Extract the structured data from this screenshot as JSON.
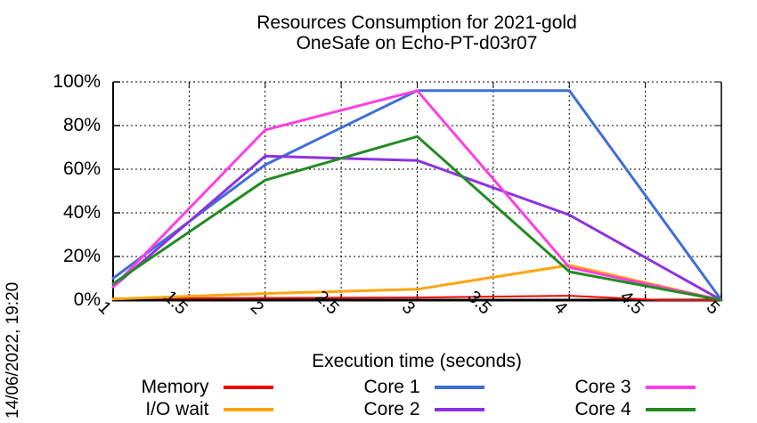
{
  "title": {
    "line1": "Resources Consumption for 2021-gold",
    "line2": "OneSafe on Echo-PT-d03r07"
  },
  "timestamp": "14/06/2022, 19:20",
  "chart_data": {
    "type": "line",
    "title": "Resources Consumption for 2021-gold OneSafe on Echo-PT-d03r07",
    "xlabel": "Execution time (seconds)",
    "ylabel": "",
    "xlim": [
      1,
      5
    ],
    "ylim": [
      0,
      100
    ],
    "x_ticks": [
      1,
      1.5,
      2,
      2.5,
      3,
      3.5,
      4,
      4.5,
      5
    ],
    "x_tick_labels": [
      "1",
      "1.5",
      "2",
      "2.5",
      "3",
      "3.5",
      "4",
      "4.5",
      "5"
    ],
    "y_ticks": [
      0,
      20,
      40,
      60,
      80,
      100
    ],
    "y_tick_labels": [
      "0%",
      "20%",
      "40%",
      "60%",
      "80%",
      "100%"
    ],
    "grid": true,
    "legend_position": "bottom",
    "series": [
      {
        "name": "Memory",
        "color": "#f40000",
        "width": 2,
        "points": [
          [
            1,
            0.8
          ],
          [
            2,
            1
          ],
          [
            3,
            1.2
          ],
          [
            4,
            2
          ],
          [
            4.6,
            0
          ],
          [
            5,
            0
          ]
        ]
      },
      {
        "name": "I/O wait",
        "color": "#ffa510",
        "width": 3,
        "points": [
          [
            1,
            0.5
          ],
          [
            2,
            3
          ],
          [
            3,
            5
          ],
          [
            4,
            16
          ],
          [
            5,
            0
          ]
        ]
      },
      {
        "name": "Core 1",
        "color": "#3c6fd6",
        "width": 3,
        "points": [
          [
            1,
            10
          ],
          [
            2,
            62
          ],
          [
            3,
            96
          ],
          [
            4,
            96
          ],
          [
            5,
            0
          ]
        ]
      },
      {
        "name": "Core 2",
        "color": "#8c33e0",
        "width": 3,
        "points": [
          [
            1,
            6
          ],
          [
            2,
            66
          ],
          [
            3,
            64
          ],
          [
            4,
            39
          ],
          [
            5,
            0
          ]
        ]
      },
      {
        "name": "Core 3",
        "color": "#ff3ee3",
        "width": 3,
        "points": [
          [
            1,
            6
          ],
          [
            2,
            78
          ],
          [
            3,
            96
          ],
          [
            4,
            15
          ],
          [
            5,
            0
          ]
        ]
      },
      {
        "name": "Core 4",
        "color": "#228b22",
        "width": 3,
        "points": [
          [
            1,
            7.5
          ],
          [
            2,
            55
          ],
          [
            3,
            75
          ],
          [
            4,
            13
          ],
          [
            5,
            0
          ]
        ]
      }
    ]
  }
}
